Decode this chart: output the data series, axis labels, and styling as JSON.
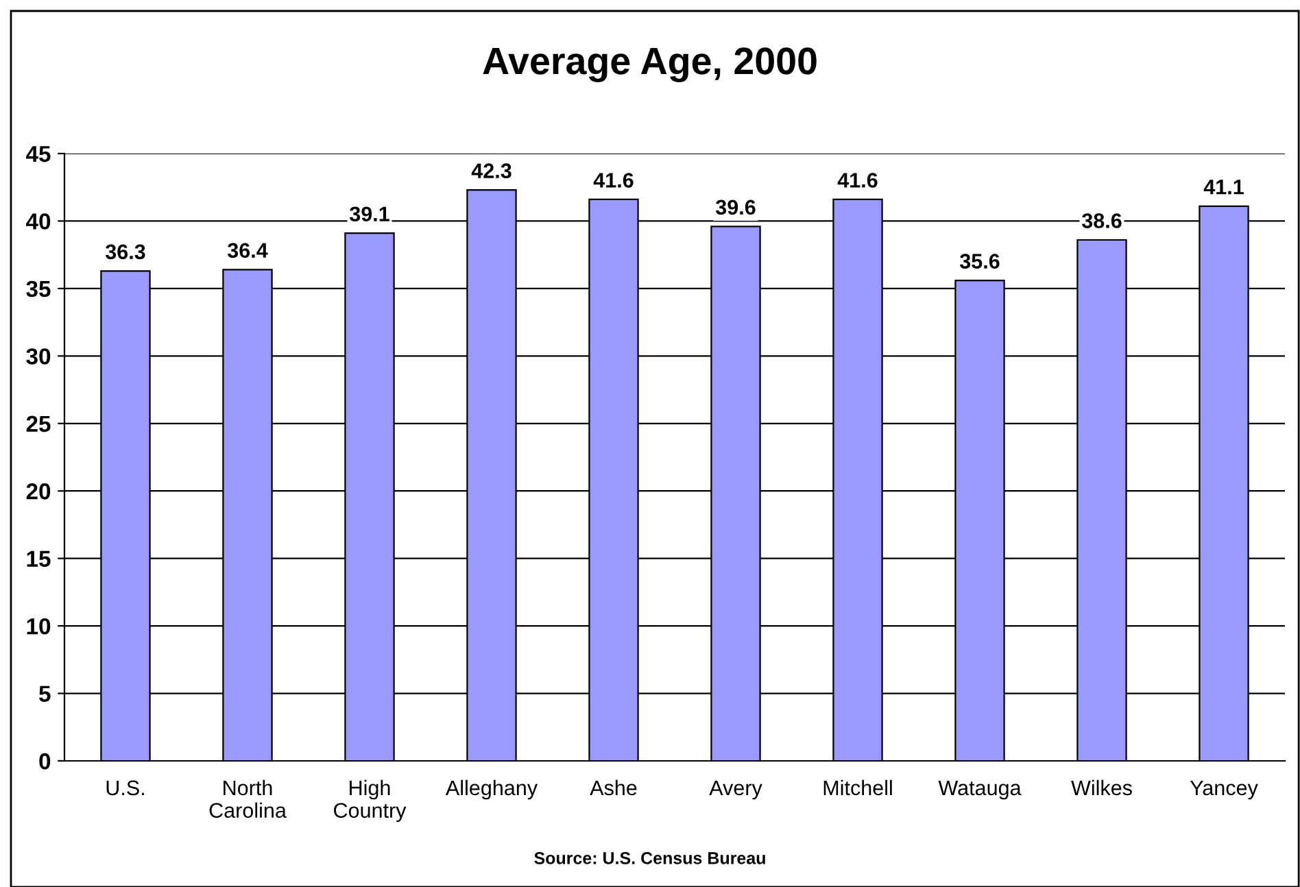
{
  "chart_data": {
    "type": "bar",
    "title": "Average Age, 2000",
    "categories": [
      "U.S.",
      "North\nCarolina",
      "High\nCountry",
      "Alleghany",
      "Ashe",
      "Avery",
      "Mitchell",
      "Watauga",
      "Wilkes",
      "Yancey"
    ],
    "values": [
      36.3,
      36.4,
      39.1,
      42.3,
      41.6,
      39.6,
      41.6,
      35.6,
      38.6,
      41.1
    ],
    "color": "#9999ff",
    "ylim": [
      0,
      45
    ],
    "yticks": [
      0,
      5,
      10,
      15,
      20,
      25,
      30,
      35,
      40,
      45
    ],
    "grid": "y",
    "data_labels": true,
    "legend": false,
    "annotations": [
      "Source: U.S. Census Bureau"
    ]
  }
}
